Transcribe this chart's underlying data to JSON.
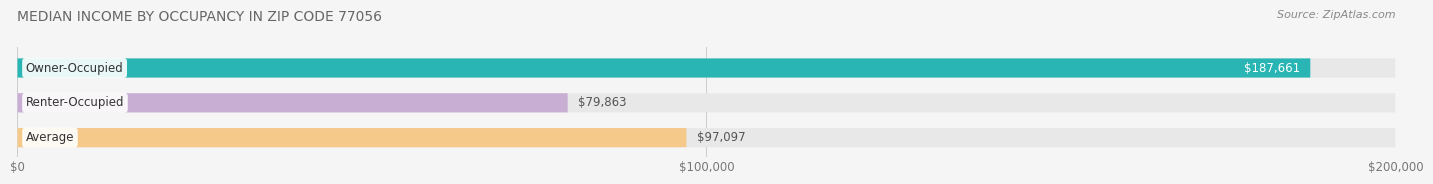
{
  "title": "MEDIAN INCOME BY OCCUPANCY IN ZIP CODE 77056",
  "source": "Source: ZipAtlas.com",
  "categories": [
    "Owner-Occupied",
    "Renter-Occupied",
    "Average"
  ],
  "values": [
    187661,
    79863,
    97097
  ],
  "labels": [
    "$187,661",
    "$79,863",
    "$97,097"
  ],
  "bar_colors": [
    "#2ab5b5",
    "#c9aed4",
    "#f5c98a"
  ],
  "bar_bg_color": "#e8e8e8",
  "xlim": [
    0,
    200000
  ],
  "xtick_labels": [
    "$0",
    "$100,000",
    "$200,000"
  ],
  "title_fontsize": 10,
  "source_fontsize": 8,
  "label_fontsize": 8.5,
  "tick_fontsize": 8.5,
  "bar_height": 0.55,
  "fig_bg_color": "#f5f5f5",
  "category_label_fontsize": 8.5
}
